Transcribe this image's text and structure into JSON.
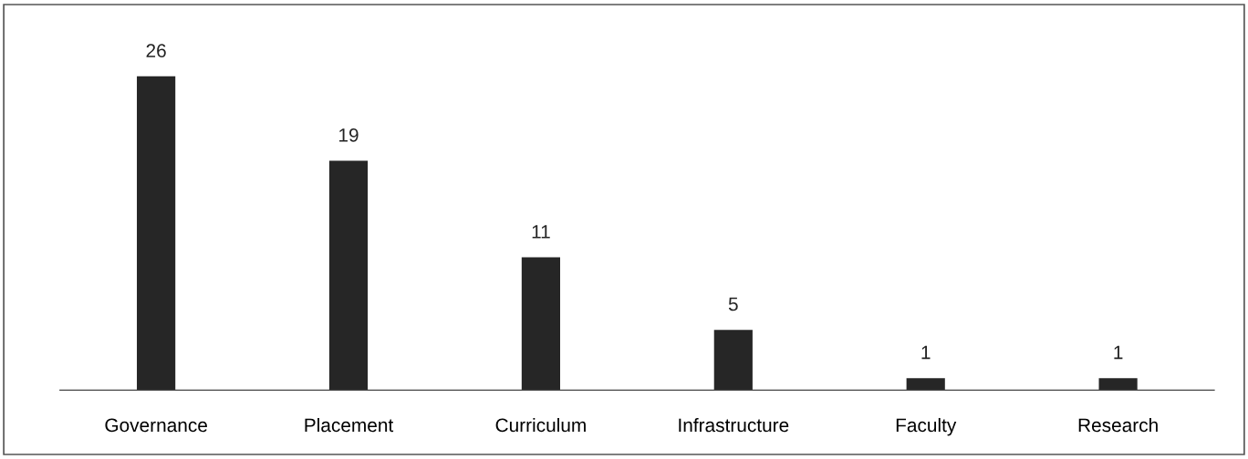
{
  "chart_data": {
    "type": "bar",
    "categories": [
      "Governance",
      "Placement",
      "Curriculum",
      "Infrastructure",
      "Faculty",
      "Research"
    ],
    "values": [
      26,
      19,
      11,
      5,
      1,
      1
    ],
    "color": "#262626",
    "data_labels": true
  }
}
